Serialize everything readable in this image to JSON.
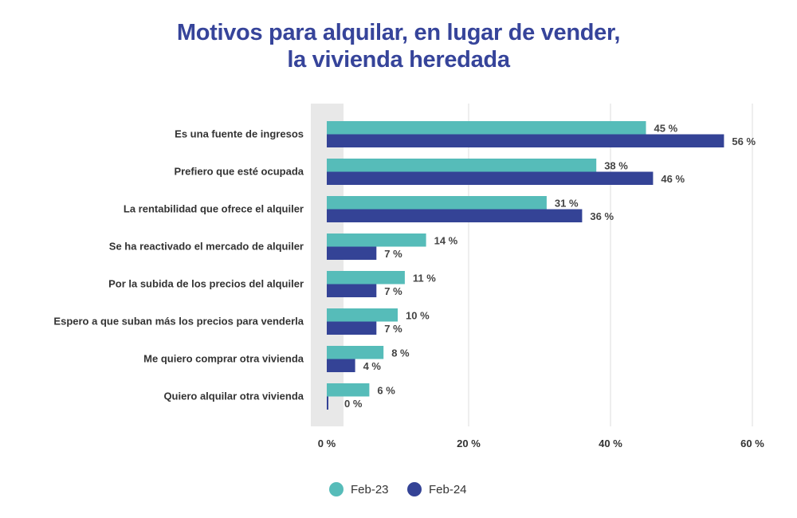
{
  "chart_data": {
    "type": "bar",
    "orientation": "horizontal",
    "title_line1": "Motivos para alquilar, en lugar de vender,",
    "title_line2": "la vivienda heredada",
    "categories": [
      "Es una fuente de ingresos",
      "Prefiero que esté ocupada",
      "La rentabilidad que ofrece el alquiler",
      "Se ha reactivado el mercado de alquiler",
      "Por la subida de los precios del alquiler",
      "Espero a que suban más los precios para venderla",
      "Me quiero comprar otra vivienda",
      "Quiero alquilar otra vivienda"
    ],
    "series": [
      {
        "name": "Feb-23",
        "color": "#56bcb9",
        "values": [
          45,
          38,
          31,
          14,
          11,
          10,
          8,
          6
        ]
      },
      {
        "name": "Feb-24",
        "color": "#344396",
        "values": [
          56,
          46,
          36,
          7,
          7,
          7,
          4,
          0
        ]
      }
    ],
    "value_suffix": " %",
    "xlim": [
      0,
      60
    ],
    "xticks": [
      0,
      20,
      40,
      60
    ],
    "xtick_labels": [
      "0 %",
      "20 %",
      "40 %",
      "60 %"
    ],
    "grid": true,
    "legend_position": "bottom-left"
  }
}
